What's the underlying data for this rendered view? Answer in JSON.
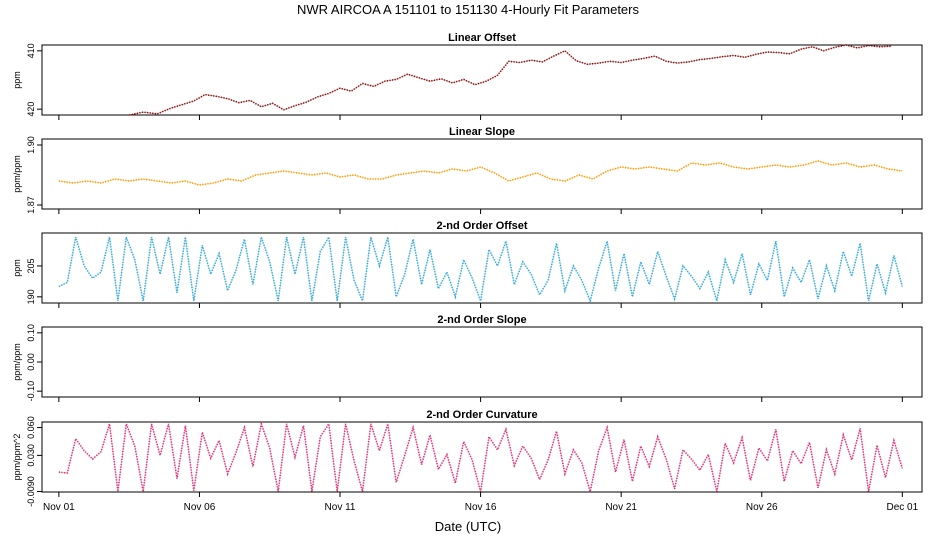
{
  "figure": {
    "title": "NWR   AIRCOA A   151101 to 151130   4-Hourly Fit Parameters",
    "xlabel": "Date (UTC)",
    "x_ticks": [
      "Nov 01",
      "Nov 06",
      "Nov 11",
      "Nov 16",
      "Nov 21",
      "Nov 26",
      "Dec 01"
    ]
  },
  "chart_data": [
    {
      "type": "line",
      "title": "Linear Offset",
      "ylabel": "ppm",
      "ylim": [
        421,
        409
      ],
      "y_ticks": [
        {
          "v": 410,
          "label": "410"
        },
        {
          "v": 420,
          "label": "420"
        }
      ],
      "color": "#c00000",
      "x": [
        2.5,
        3.0,
        3.5,
        4.0,
        4.4,
        4.8,
        5.2,
        5.6,
        6.0,
        6.4,
        6.8,
        7.2,
        7.6,
        8.0,
        8.4,
        8.8,
        9.2,
        9.6,
        10.0,
        10.4,
        10.8,
        11.2,
        11.6,
        12.0,
        12.4,
        12.8,
        13.2,
        13.6,
        14.0,
        14.4,
        14.8,
        15.2,
        15.6,
        16.0,
        16.4,
        16.8,
        17.2,
        17.6,
        18.0,
        18.4,
        18.8,
        19.2,
        19.6,
        20.0,
        20.4,
        20.8,
        21.2,
        21.6,
        22.0,
        22.4,
        22.8,
        23.2,
        23.6,
        24.0,
        24.4,
        24.8,
        25.2,
        25.6,
        26.0,
        26.4,
        26.8,
        27.2,
        27.6,
        28.0,
        28.4,
        28.8,
        29.2,
        29.6
      ],
      "y": [
        421.0,
        420.5,
        420.8,
        419.8,
        419.2,
        418.6,
        417.5,
        417.8,
        418.2,
        418.9,
        418.5,
        419.6,
        419.0,
        420.1,
        419.4,
        418.8,
        417.9,
        417.3,
        416.4,
        416.9,
        415.6,
        416.1,
        415.2,
        414.9,
        414.0,
        414.6,
        415.2,
        414.8,
        415.5,
        414.9,
        415.8,
        415.2,
        414.2,
        411.8,
        412.0,
        411.6,
        411.9,
        410.9,
        410.0,
        411.7,
        412.3,
        412.1,
        411.8,
        412.0,
        411.6,
        411.3,
        410.9,
        411.8,
        412.1,
        411.9,
        411.5,
        411.3,
        411.0,
        410.8,
        411.1,
        410.6,
        410.2,
        410.3,
        410.5,
        409.7,
        409.3,
        410.0,
        409.4,
        408.9,
        409.5,
        409.1,
        409.3,
        409.2
      ]
    },
    {
      "type": "line",
      "title": "Linear Slope",
      "ylabel": "ppm/ppm",
      "ylim": [
        1.868,
        1.903
      ],
      "y_ticks": [
        {
          "v": 1.87,
          "label": "1.87"
        },
        {
          "v": 1.9,
          "label": "1.90"
        }
      ],
      "color": "#ff9900",
      "x": [
        0.0,
        0.5,
        1.0,
        1.5,
        2.0,
        2.5,
        3.0,
        3.5,
        4.0,
        4.5,
        5.0,
        5.5,
        6.0,
        6.5,
        7.0,
        7.5,
        8.0,
        8.5,
        9.0,
        9.5,
        10.0,
        10.5,
        11.0,
        11.5,
        12.0,
        12.5,
        13.0,
        13.5,
        14.0,
        14.5,
        15.0,
        15.5,
        16.0,
        16.5,
        17.0,
        17.5,
        18.0,
        18.5,
        19.0,
        19.5,
        20.0,
        20.5,
        21.0,
        21.5,
        22.0,
        22.5,
        23.0,
        23.5,
        24.0,
        24.5,
        25.0,
        25.5,
        26.0,
        26.5,
        27.0,
        27.5,
        28.0,
        28.5,
        29.0,
        29.5,
        30.0
      ],
      "y": [
        1.882,
        1.881,
        1.882,
        1.881,
        1.883,
        1.882,
        1.883,
        1.882,
        1.881,
        1.882,
        1.88,
        1.881,
        1.883,
        1.882,
        1.885,
        1.886,
        1.887,
        1.886,
        1.885,
        1.886,
        1.884,
        1.885,
        1.883,
        1.883,
        1.885,
        1.886,
        1.887,
        1.886,
        1.888,
        1.887,
        1.889,
        1.886,
        1.882,
        1.884,
        1.886,
        1.883,
        1.882,
        1.885,
        1.883,
        1.887,
        1.889,
        1.888,
        1.889,
        1.888,
        1.887,
        1.891,
        1.89,
        1.891,
        1.889,
        1.888,
        1.889,
        1.89,
        1.889,
        1.89,
        1.892,
        1.89,
        1.891,
        1.889,
        1.89,
        1.888,
        1.887
      ]
    },
    {
      "type": "line",
      "title": "2-nd Order Offset",
      "ylabel": "ppm",
      "ylim": [
        187,
        221
      ],
      "y_ticks": [
        {
          "v": 190,
          "label": "190"
        },
        {
          "v": 205,
          "label": "205"
        }
      ],
      "color": "#33aadd",
      "x": [
        0.0,
        0.3,
        0.6,
        0.9,
        1.2,
        1.5,
        1.8,
        2.1,
        2.4,
        2.7,
        3.0,
        3.3,
        3.6,
        3.9,
        4.2,
        4.5,
        4.8,
        5.1,
        5.4,
        5.7,
        6.0,
        6.3,
        6.6,
        6.9,
        7.2,
        7.5,
        7.8,
        8.1,
        8.4,
        8.7,
        9.0,
        9.3,
        9.6,
        9.9,
        10.2,
        10.5,
        10.8,
        11.1,
        11.4,
        11.7,
        12.0,
        12.3,
        12.6,
        12.9,
        13.2,
        13.5,
        13.8,
        14.1,
        14.4,
        14.7,
        15.0,
        15.3,
        15.6,
        15.9,
        16.2,
        16.5,
        16.8,
        17.1,
        17.4,
        17.7,
        18.0,
        18.3,
        18.6,
        18.9,
        19.2,
        19.5,
        19.8,
        20.1,
        20.4,
        20.7,
        21.0,
        21.3,
        21.6,
        21.9,
        22.2,
        22.5,
        22.8,
        23.1,
        23.4,
        23.7,
        24.0,
        24.3,
        24.6,
        24.9,
        25.2,
        25.5,
        25.8,
        26.1,
        26.4,
        26.7,
        27.0,
        27.3,
        27.6,
        27.9,
        28.2,
        28.5,
        28.8,
        29.1,
        29.4,
        29.7,
        30.0
      ],
      "y": [
        195,
        197,
        219,
        205,
        199,
        202,
        219,
        188,
        219,
        208,
        188,
        219,
        201,
        219,
        192,
        219,
        188,
        215,
        201,
        211,
        193,
        203,
        218,
        196,
        219,
        207,
        188,
        219,
        201,
        219,
        188,
        212,
        219,
        188,
        219,
        198,
        188,
        219,
        205,
        219,
        190,
        201,
        218,
        196,
        213,
        194,
        202,
        190,
        208,
        199,
        188,
        213,
        205,
        217,
        196,
        207,
        201,
        191,
        198,
        216,
        193,
        205,
        198,
        188,
        204,
        217,
        193,
        211,
        190,
        207,
        196,
        212,
        200,
        189,
        205,
        200,
        194,
        202,
        188,
        208,
        197,
        211,
        191,
        206,
        198,
        217,
        190,
        204,
        197,
        208,
        189,
        205,
        193,
        212,
        200,
        216,
        188,
        206,
        192,
        210,
        195
      ]
    },
    {
      "type": "line",
      "title": "2-nd Order Slope",
      "ylabel": "ppm/ppm",
      "ylim": [
        -0.12,
        0.12
      ],
      "y_ticks": [
        {
          "v": -0.1,
          "label": "-0.10"
        },
        {
          "v": 0.0,
          "label": "0.00"
        },
        {
          "v": 0.1,
          "label": "0.10"
        }
      ],
      "color": "#2a9d4a",
      "x": [],
      "y": []
    },
    {
      "type": "line",
      "title": "2-nd Order Curvature",
      "ylabel": "ppm/ppm^2",
      "ylim": [
        -0.0095,
        0.066
      ],
      "y_ticks": [
        {
          "v": -0.009,
          "label": "-0.0090"
        },
        {
          "v": 0.03,
          "label": "0.030"
        },
        {
          "v": 0.06,
          "label": "0.060"
        }
      ],
      "color": "#e0307a",
      "x": [
        0.0,
        0.3,
        0.6,
        0.9,
        1.2,
        1.5,
        1.8,
        2.1,
        2.4,
        2.7,
        3.0,
        3.3,
        3.6,
        3.9,
        4.2,
        4.5,
        4.8,
        5.1,
        5.4,
        5.7,
        6.0,
        6.3,
        6.6,
        6.9,
        7.2,
        7.5,
        7.8,
        8.1,
        8.4,
        8.7,
        9.0,
        9.3,
        9.6,
        9.9,
        10.2,
        10.5,
        10.8,
        11.1,
        11.4,
        11.7,
        12.0,
        12.3,
        12.6,
        12.9,
        13.2,
        13.5,
        13.8,
        14.1,
        14.4,
        14.7,
        15.0,
        15.3,
        15.6,
        15.9,
        16.2,
        16.5,
        16.8,
        17.1,
        17.4,
        17.7,
        18.0,
        18.3,
        18.6,
        18.9,
        19.2,
        19.5,
        19.8,
        20.1,
        20.4,
        20.7,
        21.0,
        21.3,
        21.6,
        21.9,
        22.2,
        22.5,
        22.8,
        23.1,
        23.4,
        23.7,
        24.0,
        24.3,
        24.6,
        24.9,
        25.2,
        25.5,
        25.8,
        26.1,
        26.4,
        26.7,
        27.0,
        27.3,
        27.6,
        27.9,
        28.2,
        28.5,
        28.8,
        29.1,
        29.4,
        29.7,
        30.0
      ],
      "y": [
        0.012,
        0.011,
        0.048,
        0.035,
        0.026,
        0.034,
        0.064,
        -0.009,
        0.064,
        0.04,
        -0.009,
        0.064,
        0.03,
        0.064,
        0.005,
        0.062,
        -0.008,
        0.055,
        0.027,
        0.046,
        0.01,
        0.033,
        0.06,
        0.018,
        0.064,
        0.038,
        -0.009,
        0.064,
        0.028,
        0.062,
        -0.009,
        0.05,
        0.064,
        -0.009,
        0.064,
        0.024,
        -0.009,
        0.064,
        0.035,
        0.064,
        0.001,
        0.03,
        0.06,
        0.02,
        0.052,
        0.015,
        0.031,
        0.0,
        0.045,
        0.025,
        -0.009,
        0.05,
        0.036,
        0.058,
        0.019,
        0.04,
        0.027,
        0.004,
        0.025,
        0.056,
        0.01,
        0.036,
        0.022,
        -0.009,
        0.035,
        0.06,
        0.012,
        0.047,
        0.002,
        0.04,
        0.018,
        0.05,
        0.026,
        -0.006,
        0.036,
        0.026,
        0.014,
        0.031,
        -0.009,
        0.043,
        0.022,
        0.049,
        0.003,
        0.038,
        0.024,
        0.058,
        0.002,
        0.035,
        0.021,
        0.044,
        -0.005,
        0.036,
        0.01,
        0.052,
        0.025,
        0.059,
        -0.009,
        0.041,
        0.006,
        0.046,
        0.016
      ]
    }
  ]
}
